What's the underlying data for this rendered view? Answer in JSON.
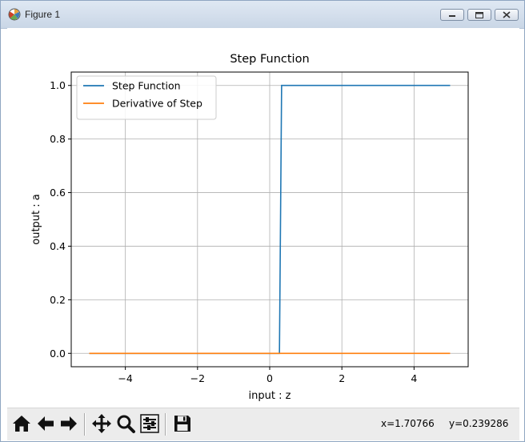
{
  "window": {
    "title": "Figure 1"
  },
  "toolbar": {
    "buttons": [
      {
        "name": "home-icon"
      },
      {
        "name": "back-arrow-icon"
      },
      {
        "name": "forward-arrow-icon"
      },
      {
        "name": "pan-move-icon"
      },
      {
        "name": "zoom-magnifier-icon"
      },
      {
        "name": "subplots-configure-icon"
      },
      {
        "name": "save-floppy-icon"
      }
    ],
    "coord_x": "x=1.70766",
    "coord_y": "y=0.239286"
  },
  "chart_data": {
    "type": "line",
    "title": "Step Function",
    "xlabel": "input : z",
    "ylabel": "output : a",
    "xlim": [
      -5.5,
      5.5
    ],
    "ylim": [
      -0.05,
      1.05
    ],
    "x_ticks": [
      -4,
      -2,
      0,
      2,
      4
    ],
    "x_tick_labels": [
      "−4",
      "−2",
      "0",
      "2",
      "4"
    ],
    "y_ticks": [
      0.0,
      0.2,
      0.4,
      0.6,
      0.8,
      1.0
    ],
    "y_tick_labels": [
      "0.0",
      "0.2",
      "0.4",
      "0.6",
      "0.8",
      "1.0"
    ],
    "grid": true,
    "legend_position": "top-left",
    "series": [
      {
        "name": "Step Function",
        "color": "#1f77b4",
        "points": [
          [
            -5.0,
            0.0
          ],
          [
            0.27,
            0.0
          ],
          [
            0.33,
            1.0
          ],
          [
            5.0,
            1.0
          ]
        ]
      },
      {
        "name": "Derivative of Step",
        "color": "#ff7f0e",
        "points": [
          [
            -5.0,
            0.0
          ],
          [
            5.0,
            0.0
          ]
        ]
      }
    ]
  }
}
